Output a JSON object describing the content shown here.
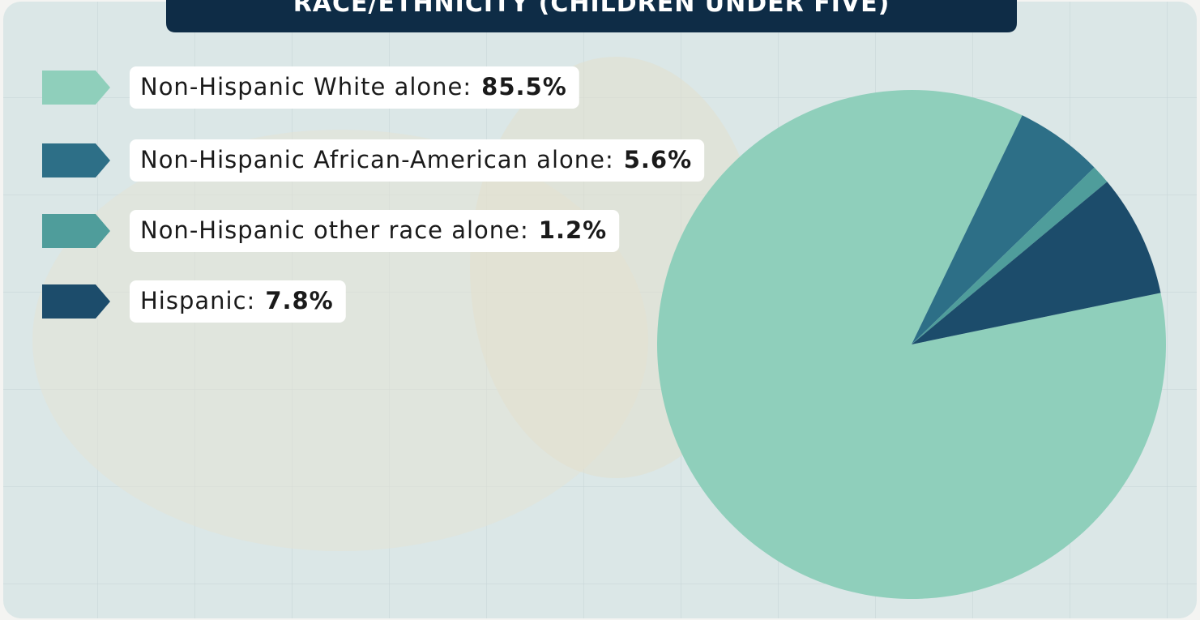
{
  "chart_data": {
    "type": "pie",
    "title": "RACE/ETHNICITY (CHILDREN UNDER FIVE)",
    "categories": [
      "Non-Hispanic White alone:",
      "Non-Hispanic African-American alone:",
      "Non-Hispanic other race alone:",
      "Hispanic:"
    ],
    "values": [
      85.5,
      5.6,
      1.2,
      7.8
    ],
    "value_labels": [
      "85.5%",
      "5.6%",
      "1.2%",
      "7.8%"
    ],
    "colors": [
      "#8fcfbb",
      "#2d6f87",
      "#4f9d9b",
      "#1c4c6b"
    ]
  }
}
